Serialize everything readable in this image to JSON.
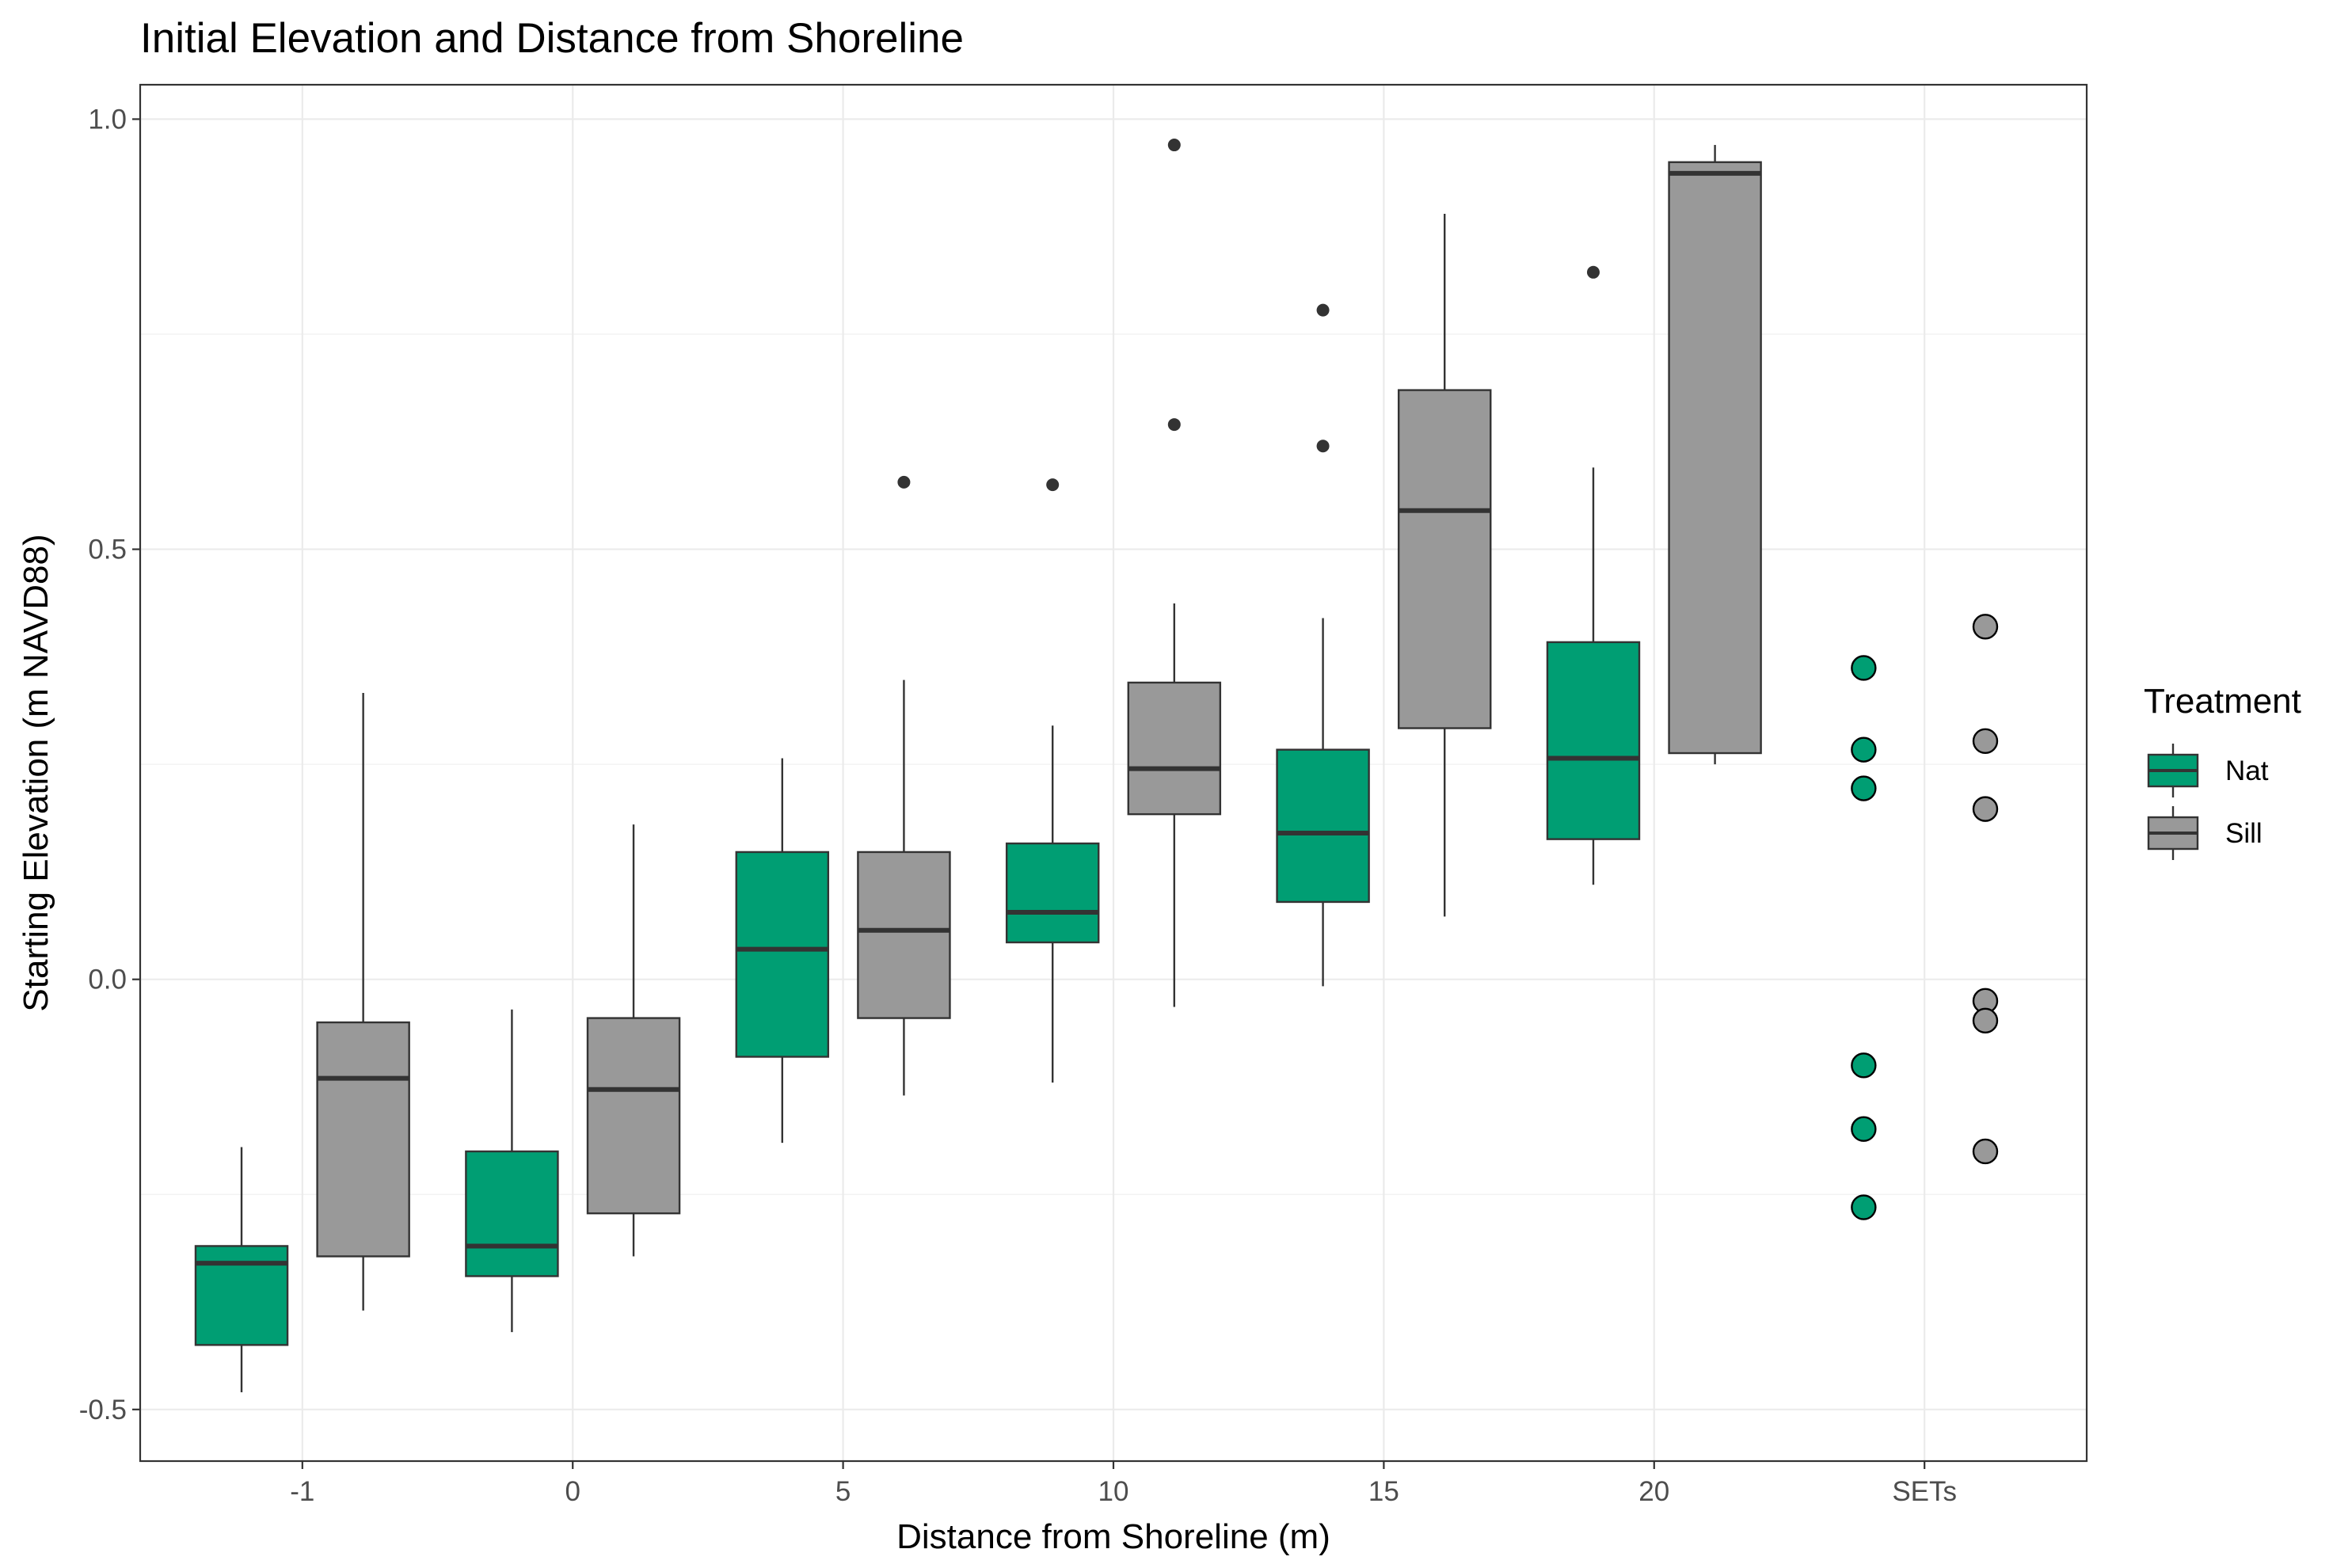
{
  "chart_data": {
    "type": "boxplot",
    "title": "Initial Elevation and Distance from Shoreline",
    "xlabel": "Distance from Shoreline (m)",
    "ylabel": "Starting Elevation (m NAVD88)",
    "ylim": [
      -0.56,
      1.04
    ],
    "yticks": [
      "-0.5",
      "0.0",
      "0.5",
      "1.0"
    ],
    "categories": [
      "-1",
      "0",
      "5",
      "10",
      "15",
      "20",
      "SETs"
    ],
    "grid": true,
    "legend": {
      "title": "Treatment",
      "position": "right",
      "entries": [
        {
          "name": "Nat",
          "color": "#009E73"
        },
        {
          "name": "Sill",
          "color": "#999999"
        }
      ]
    },
    "series": [
      {
        "name": "Nat",
        "color": "#009E73",
        "boxes": [
          {
            "category": "-1",
            "whisker_low": -0.48,
            "q1": -0.425,
            "median": -0.33,
            "q3": -0.31,
            "whisker_high": -0.195,
            "outliers": []
          },
          {
            "category": "0",
            "whisker_low": -0.41,
            "q1": -0.345,
            "median": -0.31,
            "q3": -0.2,
            "whisker_high": -0.035,
            "outliers": []
          },
          {
            "category": "5",
            "whisker_low": -0.19,
            "q1": -0.09,
            "median": 0.035,
            "q3": 0.148,
            "whisker_high": 0.257,
            "outliers": []
          },
          {
            "category": "10",
            "whisker_low": -0.12,
            "q1": 0.043,
            "median": 0.078,
            "q3": 0.158,
            "whisker_high": 0.295,
            "outliers": [
              0.575
            ]
          },
          {
            "category": "15",
            "whisker_low": -0.008,
            "q1": 0.09,
            "median": 0.17,
            "q3": 0.267,
            "whisker_high": 0.42,
            "outliers": [
              0.62,
              0.778
            ]
          },
          {
            "category": "20",
            "whisker_low": 0.11,
            "q1": 0.163,
            "median": 0.257,
            "q3": 0.392,
            "whisker_high": 0.595,
            "outliers": [
              0.822
            ]
          }
        ],
        "points": {
          "category": "SETs",
          "values": [
            0.362,
            0.267,
            0.222,
            -0.1,
            -0.174,
            -0.265
          ]
        }
      },
      {
        "name": "Sill",
        "color": "#999999",
        "boxes": [
          {
            "category": "-1",
            "whisker_low": -0.385,
            "q1": -0.322,
            "median": -0.115,
            "q3": -0.05,
            "whisker_high": 0.333,
            "outliers": []
          },
          {
            "category": "0",
            "whisker_low": -0.322,
            "q1": -0.272,
            "median": -0.128,
            "q3": -0.045,
            "whisker_high": 0.18,
            "outliers": []
          },
          {
            "category": "5",
            "whisker_low": -0.135,
            "q1": -0.045,
            "median": 0.057,
            "q3": 0.148,
            "whisker_high": 0.348,
            "outliers": [
              0.578
            ]
          },
          {
            "category": "10",
            "whisker_low": -0.032,
            "q1": 0.192,
            "median": 0.245,
            "q3": 0.345,
            "whisker_high": 0.437,
            "outliers": [
              0.645,
              0.97
            ]
          },
          {
            "category": "15",
            "whisker_low": 0.073,
            "q1": 0.292,
            "median": 0.545,
            "q3": 0.685,
            "whisker_high": 0.89,
            "outliers": []
          },
          {
            "category": "20",
            "whisker_low": 0.25,
            "q1": 0.263,
            "median": 0.937,
            "q3": 0.95,
            "whisker_high": 0.97,
            "outliers": []
          }
        ],
        "points": {
          "category": "SETs",
          "values": [
            0.41,
            0.277,
            0.198,
            -0.025,
            -0.048,
            -0.2
          ]
        }
      }
    ]
  }
}
